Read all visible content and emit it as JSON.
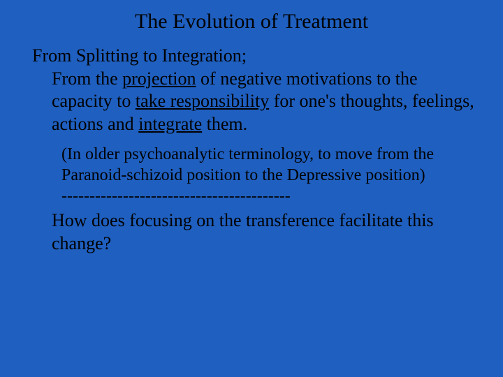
{
  "background_color": "#1f5fbf",
  "text_color": "#000000",
  "font_family": "Times New Roman",
  "title": {
    "text": "The Evolution of Treatment",
    "fontsize": 30
  },
  "body": {
    "fontsize": 26,
    "line1": "From Splitting to Integration;",
    "line2_a": "From the ",
    "line2_u1": "projection",
    "line2_b": " of negative motivations to the capacity to ",
    "line2_u2": "take responsibility",
    "line2_c": " for one's thoughts, feelings, actions and ",
    "line2_u3": "integrate",
    "line2_d": " them."
  },
  "sub": {
    "fontsize": 24,
    "text": "(In older psychoanalytic terminology, to move from the Paranoid-schizoid position to the Depressive position)",
    "divider": "-----------------------------------------"
  },
  "question": {
    "fontsize": 26,
    "text": "How does focusing on the transference facilitate this change?"
  }
}
